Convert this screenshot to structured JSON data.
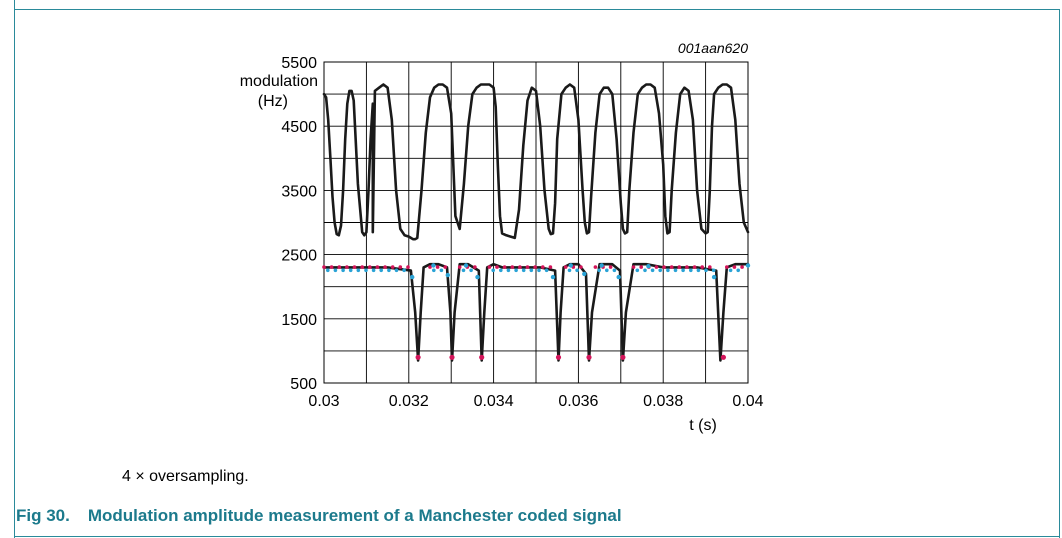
{
  "figure": {
    "id_label": "001aan620",
    "note": "4 × oversampling.",
    "caption_number": "Fig 30.",
    "caption_text": "Modulation amplitude measurement of a Manchester coded signal"
  },
  "chart_data": {
    "type": "line",
    "title": "",
    "ylabel_line1": "modulation",
    "ylabel_line2": "(Hz)",
    "xlabel": "t (s)",
    "xlim": [
      0.03,
      0.04
    ],
    "ylim": [
      500,
      5500
    ],
    "xticks": [
      0.03,
      0.032,
      0.034,
      0.036,
      0.038,
      0.04
    ],
    "xtick_labels": [
      "0.03",
      "0.032",
      "0.034",
      "0.036",
      "0.038",
      "0.04"
    ],
    "yticks": [
      500,
      1500,
      2500,
      3500,
      4500,
      5500
    ],
    "ytick_labels": [
      "500",
      "1500",
      "2500",
      "3500",
      "4500",
      "5500"
    ],
    "grid": true,
    "grid_x_step": 0.001,
    "grid_y_step": 500,
    "series": [
      {
        "color": "#1a1a1a",
        "x": [
          0.03,
          0.03005,
          0.0301,
          0.03015,
          0.0302,
          0.03025,
          0.0303,
          0.03035,
          0.0304,
          0.03045,
          0.0305,
          0.03055,
          0.0306,
          0.03065,
          0.0307,
          0.0308,
          0.0309,
          0.03095,
          0.031,
          0.03105,
          0.0311,
          0.03115,
          0.0312,
          0.0313,
          0.0314,
          0.0315,
          0.0316,
          0.0317,
          0.0318,
          0.0319,
          0.032,
          0.03205,
          0.0321,
          0.03215,
          0.0322,
          0.0323,
          0.0324,
          0.0325,
          0.0326,
          0.0327,
          0.0328,
          0.0329,
          0.033,
          0.03305,
          0.0331,
          0.03115,
          0.0332,
          0.0333,
          0.0334,
          0.0335,
          0.0336,
          0.0337,
          0.0338,
          0.0339,
          0.034,
          0.03405,
          0.0341,
          0.03415,
          0.0342,
          0.0343,
          0.0344,
          0.0345,
          0.0346,
          0.0347,
          0.0348,
          0.0349,
          0.035,
          0.0351,
          0.0352,
          0.0353,
          0.03535,
          0.0354,
          0.03545,
          0.0355,
          0.0356,
          0.0357,
          0.0358,
          0.0359,
          0.036,
          0.0361,
          0.03615,
          0.0362,
          0.03625,
          0.0363,
          0.0364,
          0.0365,
          0.0366,
          0.0367,
          0.0368,
          0.0369,
          0.037,
          0.03705,
          0.0371,
          0.03715,
          0.0372,
          0.0373,
          0.0374,
          0.0375,
          0.0376,
          0.0377,
          0.0378,
          0.0379,
          0.038,
          0.03805,
          0.0381,
          0.03815,
          0.0382,
          0.0383,
          0.0384,
          0.0385,
          0.0386,
          0.0387,
          0.0388,
          0.0389,
          0.039,
          0.03905,
          0.0391,
          0.03915,
          0.0392,
          0.0393,
          0.0394,
          0.0395,
          0.0396,
          0.0397,
          0.0398,
          0.0399,
          0.04
        ],
        "y": [
          5000,
          4950,
          4600,
          4000,
          3400,
          3000,
          2820,
          2800,
          2950,
          3500,
          4300,
          4850,
          5050,
          5050,
          4900,
          3600,
          2850,
          2800,
          2850,
          3500,
          4300,
          4850,
          5050,
          5100,
          5150,
          5100,
          4600,
          3500,
          2900,
          2800,
          2780,
          2760,
          2740,
          2740,
          2760,
          3500,
          4400,
          4950,
          5100,
          5150,
          5150,
          5100,
          4700,
          3900,
          3100,
          2850,
          2900,
          3600,
          4500,
          5000,
          5100,
          5150,
          5150,
          5150,
          5100,
          4800,
          3900,
          3100,
          2830,
          2800,
          2780,
          2760,
          3200,
          4200,
          4900,
          5100,
          5050,
          4500,
          3500,
          2900,
          2820,
          2830,
          3300,
          4300,
          5000,
          5100,
          5150,
          5100,
          4600,
          3500,
          3000,
          2830,
          2850,
          3400,
          4400,
          5000,
          5100,
          5100,
          5000,
          4300,
          3300,
          2900,
          2830,
          2850,
          3500,
          4400,
          5000,
          5100,
          5150,
          5150,
          5100,
          4700,
          3900,
          3100,
          2830,
          2850,
          3500,
          4400,
          5000,
          5100,
          5050,
          4600,
          3500,
          2900,
          2830,
          2850,
          3500,
          4500,
          5000,
          5100,
          5150,
          5150,
          5100,
          4600,
          3600,
          3000,
          2850
        ]
      },
      {
        "color": "#1a1a1a",
        "x": [
          0.03,
          0.0305,
          0.031,
          0.0315,
          0.03205,
          0.03215,
          0.03222,
          0.03228,
          0.03235,
          0.0325,
          0.0327,
          0.0329,
          0.03298,
          0.03302,
          0.03308,
          0.0332,
          0.0334,
          0.03365,
          0.03372,
          0.03378,
          0.03385,
          0.034,
          0.0342,
          0.0345,
          0.0348,
          0.0351,
          0.03545,
          0.03553,
          0.03558,
          0.03565,
          0.0358,
          0.036,
          0.03618,
          0.03625,
          0.03632,
          0.0365,
          0.0368,
          0.03698,
          0.03705,
          0.03712,
          0.0373,
          0.0376,
          0.038,
          0.0384,
          0.0388,
          0.03925,
          0.03935,
          0.03942,
          0.0395,
          0.0397,
          0.04
        ],
        "y": [
          2300,
          2300,
          2300,
          2300,
          2250,
          1600,
          850,
          1600,
          2300,
          2350,
          2350,
          2300,
          1600,
          850,
          1600,
          2350,
          2350,
          2250,
          850,
          1600,
          2300,
          2350,
          2300,
          2300,
          2300,
          2300,
          2250,
          850,
          1600,
          2300,
          2350,
          2350,
          2200,
          850,
          1600,
          2350,
          2350,
          2250,
          850,
          1600,
          2350,
          2350,
          2300,
          2300,
          2300,
          2250,
          850,
          1600,
          2300,
          2350,
          2350
        ]
      }
    ],
    "markers": {
      "magenta_color": "#d4145a",
      "blue_color": "#2aa3d6",
      "magenta_low_x": [
        0.03222,
        0.03302,
        0.03372,
        0.03553,
        0.03625,
        0.03705,
        0.03942
      ],
      "magenta_low_y": 900,
      "blue_edge_x": [
        0.03208,
        0.03258,
        0.03292,
        0.03335,
        0.03362,
        0.0354,
        0.03582,
        0.03614,
        0.03655,
        0.03695,
        0.03765,
        0.0392,
        0.04
      ],
      "blue_edge_y": [
        2150,
        2330,
        2180,
        2330,
        2150,
        2150,
        2330,
        2200,
        2330,
        2150,
        2320,
        2150,
        2330
      ]
    }
  }
}
